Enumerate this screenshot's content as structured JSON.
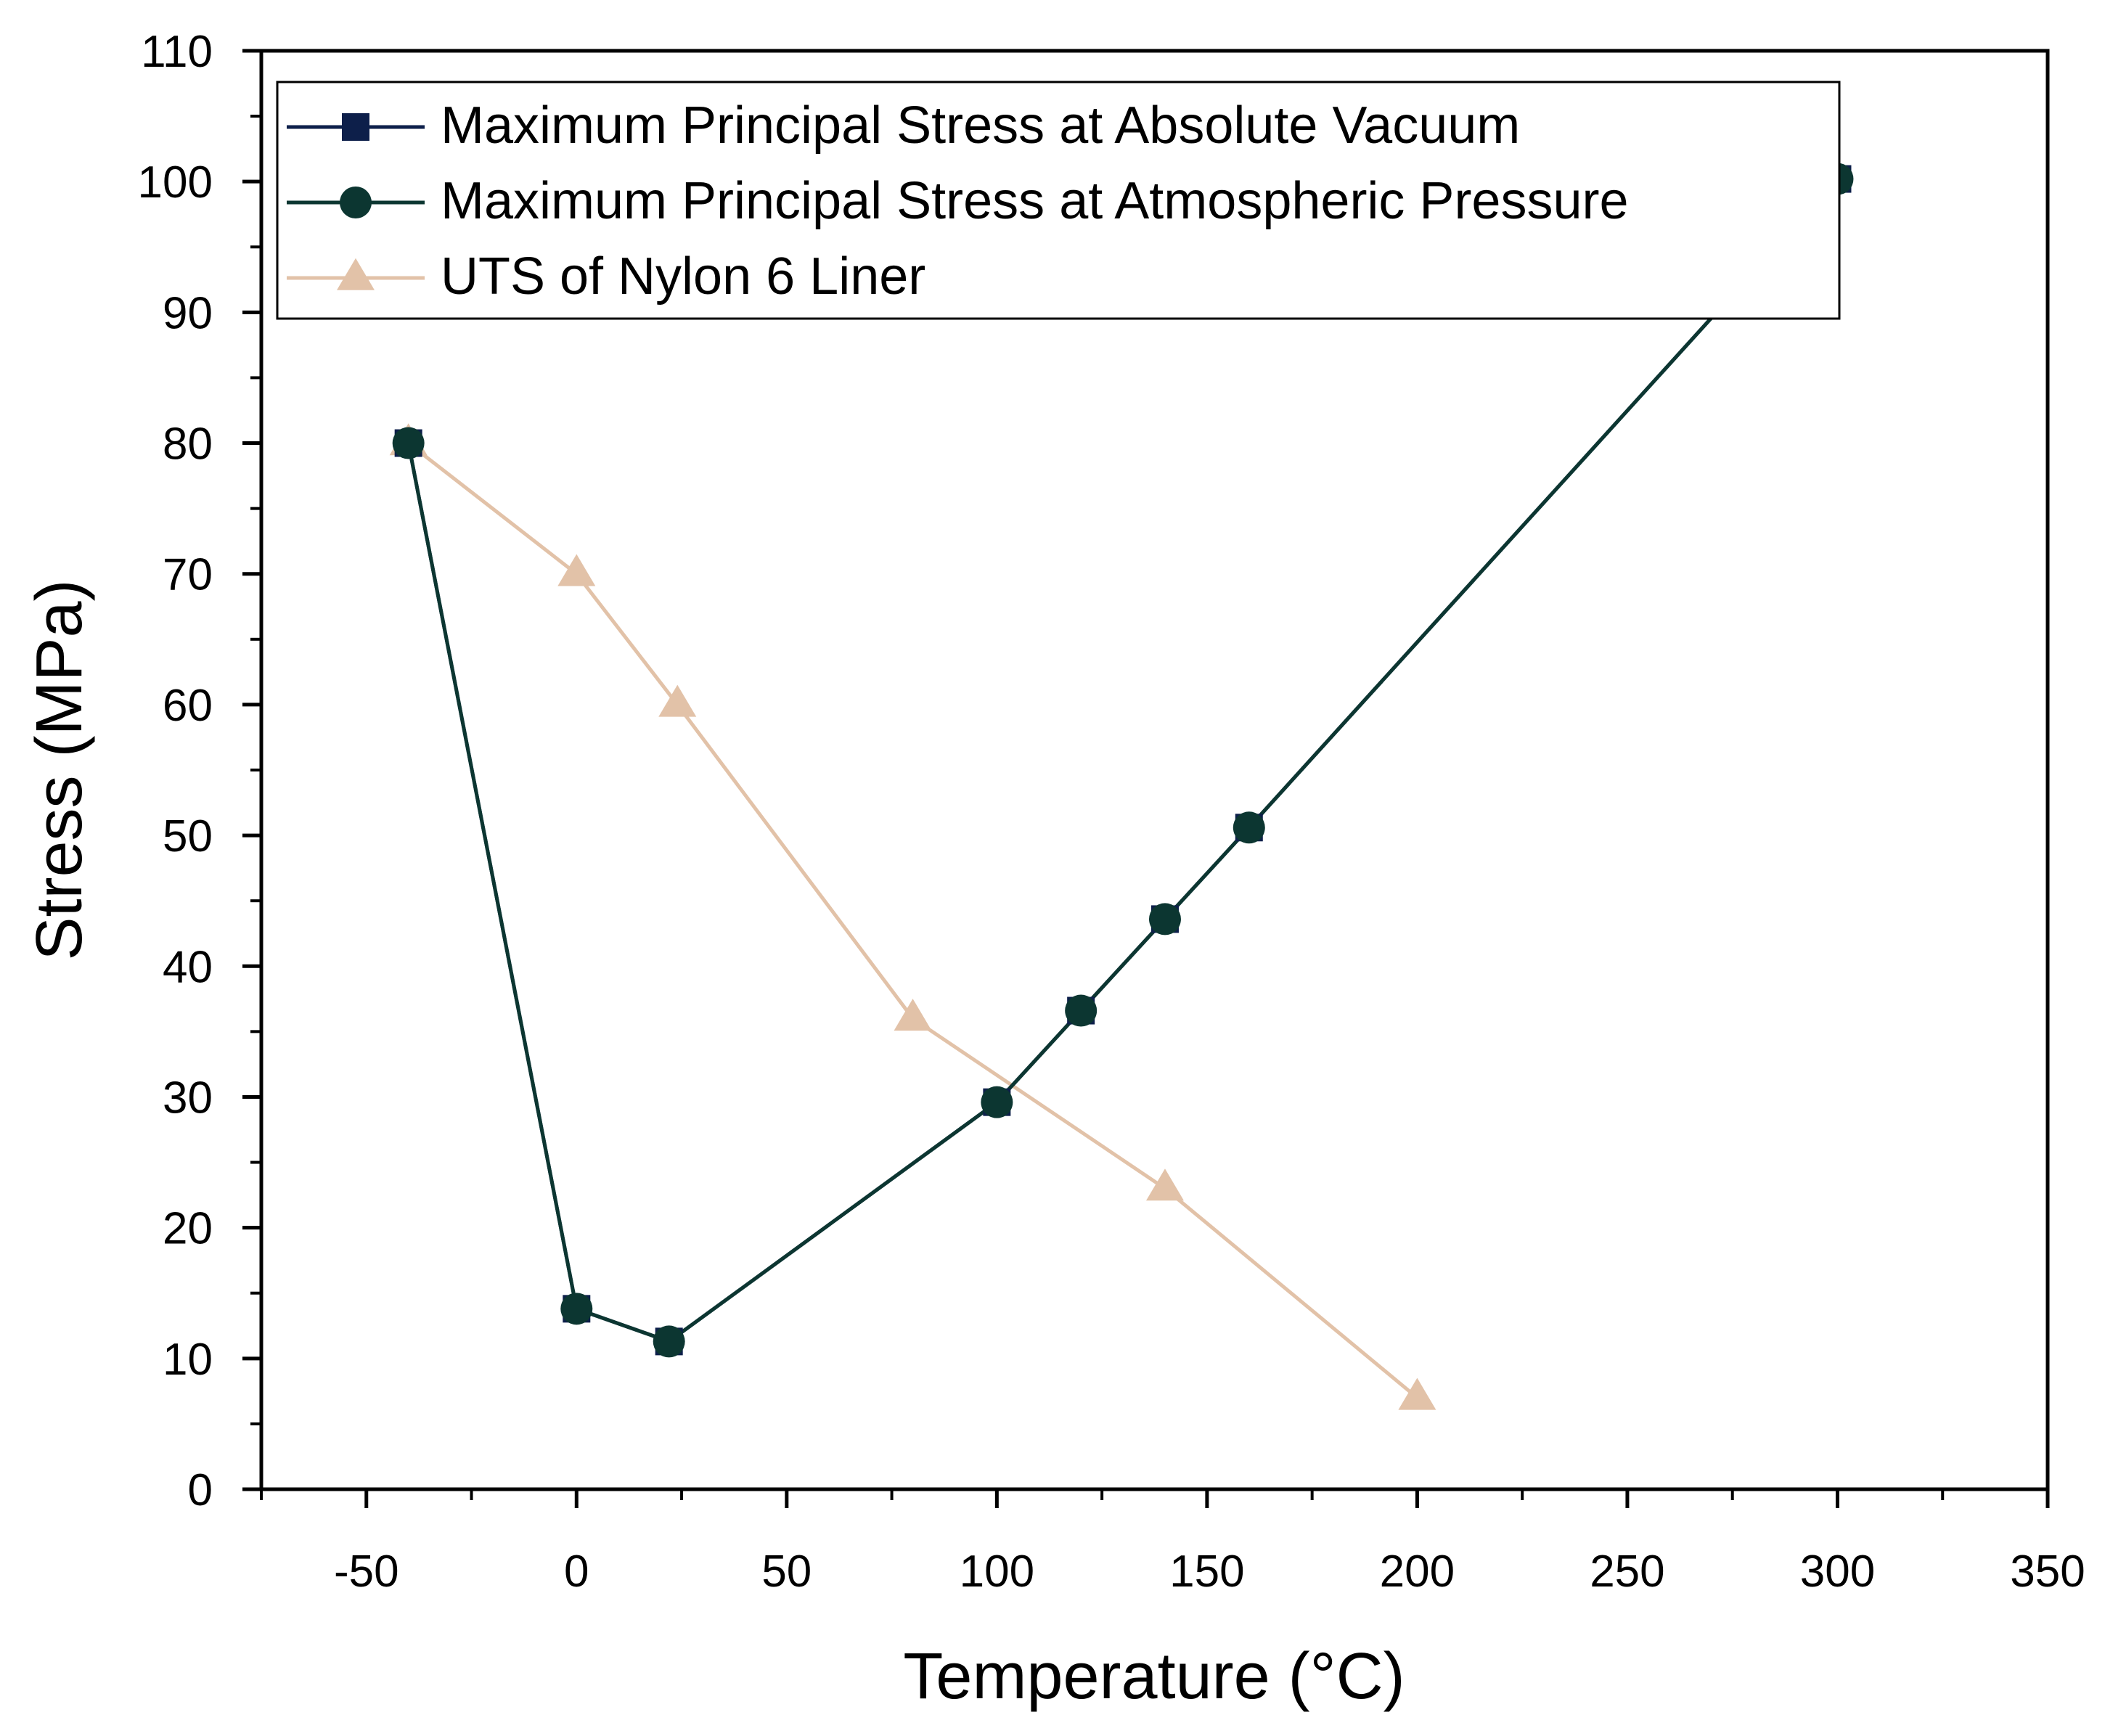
{
  "chart_data": {
    "type": "line",
    "title": "",
    "xlabel": "Temperature (°C)",
    "ylabel": "Stress (MPa)",
    "xlim": [
      -75,
      350
    ],
    "ylim": [
      0,
      110
    ],
    "x_ticks": [
      -50,
      0,
      50,
      100,
      150,
      200,
      250,
      300,
      350
    ],
    "y_ticks": [
      0,
      10,
      20,
      30,
      40,
      50,
      60,
      70,
      80,
      90,
      100,
      110
    ],
    "grid": false,
    "legend_position": "top-left",
    "series": [
      {
        "name": "Maximum Principal Stress at Absolute Vacuum",
        "marker": "square",
        "color": "#0d1f4a",
        "x": [
          -40,
          0,
          22,
          100,
          120,
          140,
          160,
          300
        ],
        "y": [
          80,
          13.8,
          11.3,
          29.6,
          36.6,
          43.6,
          50.6,
          100.2
        ]
      },
      {
        "name": "Maximum Principal Stress at Atmospheric Pressure",
        "marker": "circle",
        "color": "#0c3631",
        "x": [
          -40,
          0,
          22,
          100,
          120,
          140,
          160,
          300
        ],
        "y": [
          80,
          13.8,
          11.3,
          29.6,
          36.6,
          43.6,
          50.6,
          100.2
        ]
      },
      {
        "name": "UTS of Nylon 6 Liner",
        "marker": "triangle",
        "color": "#e2c2a8",
        "x": [
          -40,
          0,
          24,
          80,
          140,
          200
        ],
        "y": [
          80,
          70,
          60,
          36,
          23,
          7
        ]
      }
    ]
  }
}
